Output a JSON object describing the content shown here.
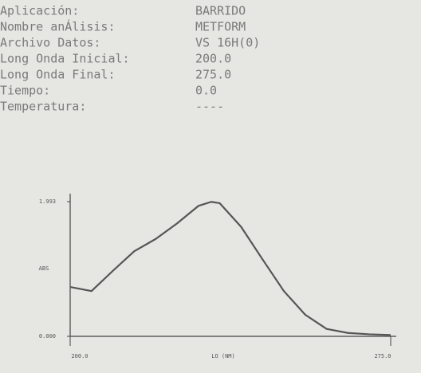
{
  "header": {
    "rows": [
      {
        "label": "Aplicación:",
        "value": "BARRIDO"
      },
      {
        "label": "Nombre anÁlisis:",
        "value": "METFORM"
      },
      {
        "label": "Archivo Datos:",
        "value": "VS 16H(0)"
      },
      {
        "label": "Long Onda Inicial:",
        "value": "200.0"
      },
      {
        "label": "Long Onda Final:",
        "value": "275.0"
      },
      {
        "label": "Tiempo:",
        "value": "0.0"
      },
      {
        "label": "Temperatura:",
        "value": "----"
      }
    ]
  },
  "chart_data": {
    "type": "line",
    "y_label": "ABS",
    "x_label": "LO (NM)",
    "x": [
      200,
      205,
      210,
      215,
      220,
      225,
      230,
      233,
      235,
      240,
      245,
      250,
      255,
      260,
      265,
      270,
      275
    ],
    "series": [
      {
        "color": "#555555",
        "values": [
          0.73,
          0.67,
          0.97,
          1.26,
          1.44,
          1.67,
          1.93,
          1.99,
          1.97,
          1.62,
          1.14,
          0.67,
          0.32,
          0.11,
          0.05,
          0.03,
          0.02
        ]
      }
    ],
    "xlim": [
      200,
      275
    ],
    "ylim": [
      0,
      1.993
    ],
    "xticks": [
      {
        "value": 200,
        "label": "200.0"
      },
      {
        "value": 275,
        "label": "275.0"
      }
    ],
    "yticks": [
      {
        "value": 0,
        "label": "0.000"
      },
      {
        "value": 1.993,
        "label": "1.993"
      }
    ]
  }
}
